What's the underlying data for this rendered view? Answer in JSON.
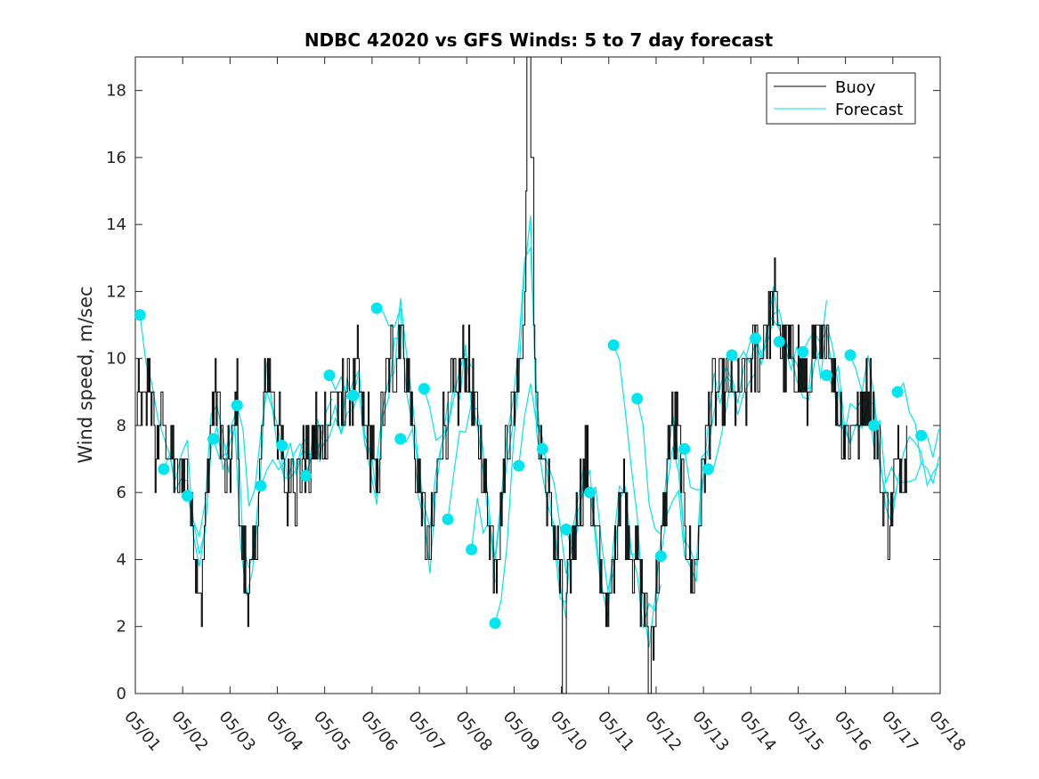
{
  "chart_data": {
    "type": "line",
    "title": "NDBC 42020 vs GFS Winds: 5 to 7 day forecast",
    "ylabel": "Wind speed, m/sec",
    "xlabel": "",
    "x_range_days": [
      1,
      18
    ],
    "ylim": [
      0,
      19
    ],
    "y_ticks": [
      0,
      2,
      4,
      6,
      8,
      10,
      12,
      14,
      16,
      18
    ],
    "x_tick_labels": [
      "05/01",
      "05/02",
      "05/03",
      "05/04",
      "05/05",
      "05/06",
      "05/07",
      "05/08",
      "05/09",
      "05/10",
      "05/11",
      "05/12",
      "05/13",
      "05/14",
      "05/15",
      "05/16",
      "05/17",
      "05/18"
    ],
    "legend": {
      "placement": "top-right",
      "entries": [
        "Buoy",
        "Forecast"
      ]
    },
    "colors": {
      "buoy": "#000000",
      "forecast": "#00e5ee",
      "marker": "#00e5ee"
    },
    "buoy_trend": [
      [
        1.0,
        8
      ],
      [
        1.1,
        9
      ],
      [
        1.2,
        8
      ],
      [
        1.3,
        10
      ],
      [
        1.4,
        7
      ],
      [
        1.5,
        8
      ],
      [
        1.6,
        8
      ],
      [
        1.7,
        7
      ],
      [
        1.8,
        7
      ],
      [
        1.9,
        6
      ],
      [
        2.0,
        7
      ],
      [
        2.1,
        7
      ],
      [
        2.2,
        5
      ],
      [
        2.3,
        4
      ],
      [
        2.4,
        3
      ],
      [
        2.5,
        6
      ],
      [
        2.6,
        8
      ],
      [
        2.7,
        9
      ],
      [
        2.8,
        8
      ],
      [
        2.9,
        6
      ],
      [
        3.0,
        7
      ],
      [
        3.1,
        8
      ],
      [
        3.15,
        9
      ],
      [
        3.2,
        5
      ],
      [
        3.3,
        4
      ],
      [
        3.4,
        3
      ],
      [
        3.5,
        4
      ],
      [
        3.6,
        6
      ],
      [
        3.7,
        8
      ],
      [
        3.8,
        10
      ],
      [
        3.9,
        9
      ],
      [
        4.0,
        8
      ],
      [
        4.1,
        7
      ],
      [
        4.2,
        6
      ],
      [
        4.3,
        7
      ],
      [
        4.4,
        6
      ],
      [
        4.5,
        7
      ],
      [
        4.6,
        7
      ],
      [
        4.7,
        7
      ],
      [
        4.8,
        8
      ],
      [
        4.9,
        7
      ],
      [
        5.0,
        8
      ],
      [
        5.1,
        8
      ],
      [
        5.2,
        9
      ],
      [
        5.3,
        8
      ],
      [
        5.4,
        9
      ],
      [
        5.5,
        9
      ],
      [
        5.6,
        9
      ],
      [
        5.7,
        10
      ],
      [
        5.8,
        8
      ],
      [
        5.9,
        8
      ],
      [
        6.0,
        7
      ],
      [
        6.1,
        6
      ],
      [
        6.2,
        8
      ],
      [
        6.3,
        9
      ],
      [
        6.4,
        10
      ],
      [
        6.5,
        10
      ],
      [
        6.6,
        11
      ],
      [
        6.7,
        10
      ],
      [
        6.8,
        9
      ],
      [
        6.9,
        7
      ],
      [
        7.0,
        6
      ],
      [
        7.1,
        5
      ],
      [
        7.2,
        4
      ],
      [
        7.3,
        5
      ],
      [
        7.4,
        7
      ],
      [
        7.5,
        8
      ],
      [
        7.6,
        8
      ],
      [
        7.7,
        9
      ],
      [
        7.8,
        9
      ],
      [
        7.9,
        10
      ],
      [
        8.0,
        10
      ],
      [
        8.1,
        9
      ],
      [
        8.2,
        8
      ],
      [
        8.3,
        7
      ],
      [
        8.4,
        6
      ],
      [
        8.5,
        5
      ],
      [
        8.6,
        4
      ],
      [
        8.7,
        5
      ],
      [
        8.8,
        7
      ],
      [
        8.9,
        8
      ],
      [
        9.0,
        9
      ],
      [
        9.1,
        10
      ],
      [
        9.2,
        11
      ],
      [
        9.3,
        18
      ],
      [
        9.4,
        10
      ],
      [
        9.5,
        8
      ],
      [
        9.6,
        7
      ],
      [
        9.7,
        6
      ],
      [
        9.8,
        5
      ],
      [
        9.9,
        4
      ],
      [
        10.0,
        3
      ],
      [
        10.1,
        3
      ],
      [
        10.2,
        4
      ],
      [
        10.3,
        5
      ],
      [
        10.4,
        6
      ],
      [
        10.5,
        7
      ],
      [
        10.6,
        6
      ],
      [
        10.7,
        5
      ],
      [
        10.8,
        4
      ],
      [
        10.9,
        3
      ],
      [
        11.0,
        2
      ],
      [
        11.1,
        4
      ],
      [
        11.2,
        6
      ],
      [
        11.3,
        6
      ],
      [
        11.4,
        5
      ],
      [
        11.5,
        4
      ],
      [
        11.6,
        4
      ],
      [
        11.7,
        3
      ],
      [
        11.8,
        2
      ],
      [
        11.9,
        2
      ],
      [
        12.0,
        3
      ],
      [
        12.1,
        4
      ],
      [
        12.2,
        6
      ],
      [
        12.3,
        8
      ],
      [
        12.4,
        8
      ],
      [
        12.5,
        7
      ],
      [
        12.6,
        5
      ],
      [
        12.7,
        4
      ],
      [
        12.8,
        3
      ],
      [
        12.9,
        5
      ],
      [
        13.0,
        7
      ],
      [
        13.1,
        8
      ],
      [
        13.2,
        9
      ],
      [
        13.3,
        9
      ],
      [
        13.4,
        9
      ],
      [
        13.5,
        9
      ],
      [
        13.6,
        9
      ],
      [
        13.7,
        9
      ],
      [
        13.8,
        9
      ],
      [
        13.9,
        9
      ],
      [
        14.0,
        10
      ],
      [
        14.1,
        10
      ],
      [
        14.2,
        10
      ],
      [
        14.3,
        11
      ],
      [
        14.4,
        11
      ],
      [
        14.5,
        12
      ],
      [
        14.6,
        11
      ],
      [
        14.7,
        10
      ],
      [
        14.8,
        10
      ],
      [
        14.9,
        10
      ],
      [
        15.0,
        10
      ],
      [
        15.1,
        9
      ],
      [
        15.2,
        9
      ],
      [
        15.3,
        10
      ],
      [
        15.4,
        10
      ],
      [
        15.5,
        10
      ],
      [
        15.6,
        11
      ],
      [
        15.7,
        10
      ],
      [
        15.8,
        9
      ],
      [
        15.9,
        8
      ],
      [
        16.0,
        8
      ],
      [
        16.1,
        8
      ],
      [
        16.2,
        8
      ],
      [
        16.3,
        8
      ],
      [
        16.4,
        9
      ],
      [
        16.5,
        9
      ],
      [
        16.6,
        8
      ],
      [
        16.7,
        7
      ],
      [
        16.8,
        6
      ],
      [
        16.9,
        5
      ],
      [
        17.0,
        6
      ],
      [
        17.1,
        7
      ],
      [
        17.2,
        7
      ],
      [
        17.3,
        7
      ]
    ],
    "forecast_markers": [
      [
        1.1,
        11.3
      ],
      [
        1.6,
        6.7
      ],
      [
        2.1,
        5.9
      ],
      [
        2.65,
        7.6
      ],
      [
        3.15,
        8.6
      ],
      [
        3.65,
        6.2
      ],
      [
        4.1,
        7.4
      ],
      [
        4.6,
        6.5
      ],
      [
        5.1,
        9.5
      ],
      [
        5.6,
        8.9
      ],
      [
        6.1,
        11.5
      ],
      [
        6.6,
        7.6
      ],
      [
        7.1,
        9.1
      ],
      [
        7.6,
        5.2
      ],
      [
        8.1,
        4.3
      ],
      [
        8.6,
        2.1
      ],
      [
        9.1,
        6.8
      ],
      [
        9.6,
        7.3
      ],
      [
        10.1,
        4.9
      ],
      [
        10.6,
        6.0
      ],
      [
        11.1,
        10.4
      ],
      [
        11.6,
        8.8
      ],
      [
        12.1,
        4.1
      ],
      [
        12.6,
        7.3
      ],
      [
        13.1,
        6.7
      ],
      [
        13.6,
        10.1
      ],
      [
        14.1,
        10.6
      ],
      [
        14.6,
        10.5
      ],
      [
        15.1,
        10.2
      ],
      [
        15.6,
        9.5
      ],
      [
        16.1,
        10.1
      ],
      [
        16.6,
        8.0
      ],
      [
        17.1,
        9.0
      ],
      [
        17.6,
        7.7
      ]
    ]
  }
}
